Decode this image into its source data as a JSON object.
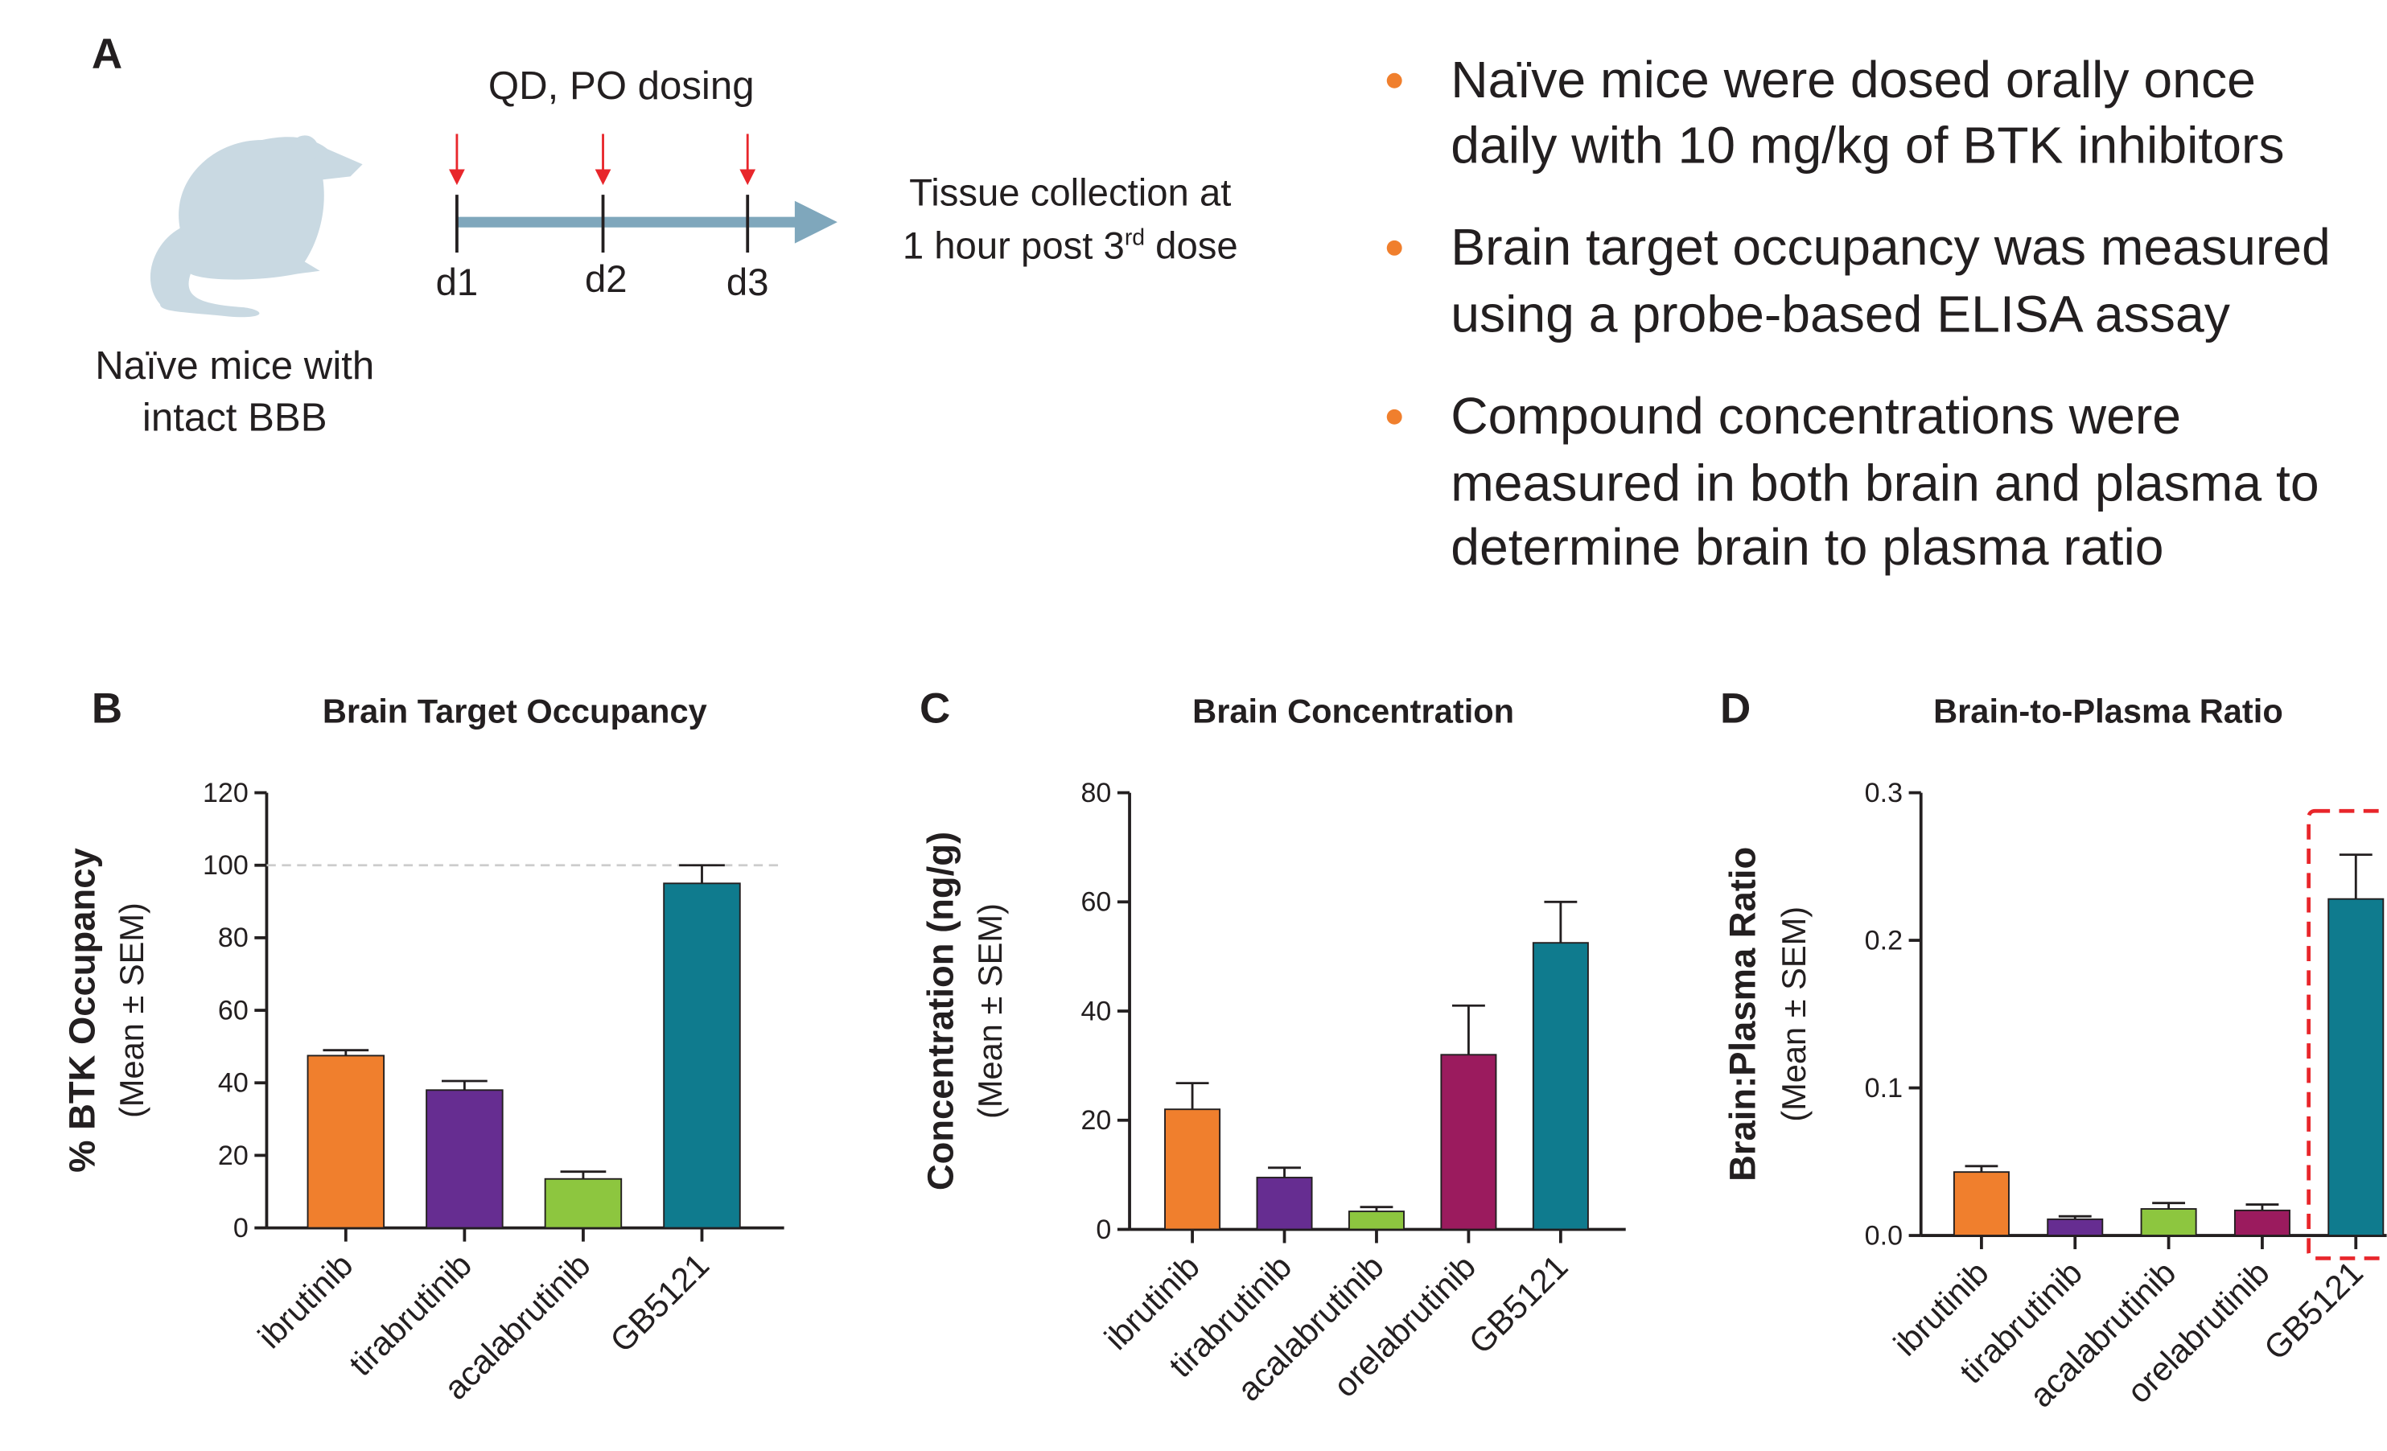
{
  "panel_a": {
    "letter": "A",
    "mouse_label": [
      "Naïve mice with",
      "intact BBB"
    ],
    "dosing": "QD, PO dosing",
    "days": [
      "d1",
      "d2",
      "d3"
    ],
    "collection": [
      "Tissue collection at",
      "1 hour post 3",
      "rd",
      " dose"
    ]
  },
  "bullets": [
    [
      "Naïve mice were dosed orally once",
      "daily with 10 mg/kg of BTK inhibitors"
    ],
    [
      "Brain target occupancy was measured",
      "using a probe-based ELISA assay"
    ],
    [
      "Compound concentrations were",
      "measured in both brain and plasma to",
      "determine brain to plasma ratio"
    ]
  ],
  "chart_data": [
    {
      "type": "bar",
      "panel": "B",
      "title": "Brain Target Occupancy",
      "ylabel": "% BTK Occupancy",
      "ylabel_sub": "(Mean ± SEM)",
      "categories": [
        "ibrutinib",
        "tirabrutinib",
        "acalabrutinib",
        "GB5121"
      ],
      "values": [
        47.5,
        38,
        13.5,
        95
      ],
      "errors": [
        1.5,
        2.5,
        2,
        5
      ],
      "colors": [
        "#f07f2d",
        "#662d91",
        "#8dc63f",
        "#0f7b8e"
      ],
      "ylim": [
        0,
        120
      ],
      "yticks": [
        0,
        20,
        40,
        60,
        80,
        100,
        120
      ],
      "reference_line": 100
    },
    {
      "type": "bar",
      "panel": "C",
      "title": "Brain Concentration",
      "ylabel": "Concentration (ng/g)",
      "ylabel_sub": "(Mean ± SEM)",
      "categories": [
        "ibrutinib",
        "tirabrutinib",
        "acalabrutinib",
        "orelabrutinib",
        "GB5121"
      ],
      "values": [
        22,
        9.5,
        3.3,
        32,
        52.5
      ],
      "errors": [
        4.8,
        1.8,
        0.8,
        9,
        7.5
      ],
      "colors": [
        "#f07f2d",
        "#662d91",
        "#8dc63f",
        "#9b1b5e",
        "#0f7b8e"
      ],
      "ylim": [
        0,
        80
      ],
      "yticks": [
        0,
        20,
        40,
        60,
        80
      ]
    },
    {
      "type": "bar",
      "panel": "D",
      "title": "Brain-to-Plasma Ratio",
      "ylabel": "Brain:Plasma Ratio",
      "ylabel_sub": "(Mean ± SEM)",
      "categories": [
        "ibrutinib",
        "tirabrutinib",
        "acalabrutinib",
        "orelabrutinib",
        "GB5121"
      ],
      "values": [
        0.043,
        0.011,
        0.018,
        0.017,
        0.228
      ],
      "errors": [
        0.004,
        0.002,
        0.004,
        0.004,
        0.03
      ],
      "colors": [
        "#f07f2d",
        "#662d91",
        "#8dc63f",
        "#9b1b5e",
        "#0f7b8e"
      ],
      "ylim": [
        0,
        0.3
      ],
      "yticks": [
        {
          "value": 0,
          "label": "0.0"
        },
        0.1,
        0.2,
        0.3
      ]
    }
  ]
}
